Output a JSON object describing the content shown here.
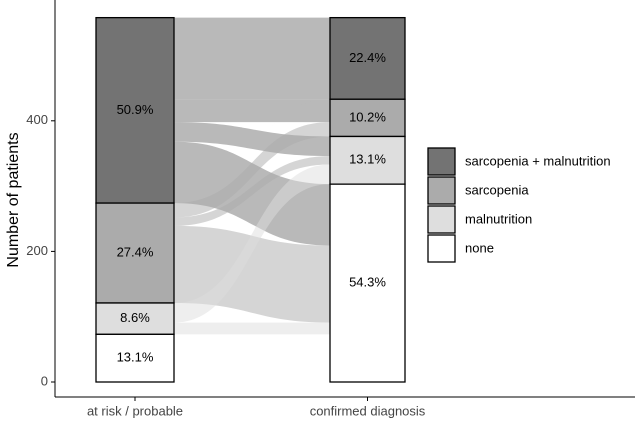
{
  "chart_data": {
    "type": "alluvial",
    "ylabel": "Number of patients",
    "ylim": [
      0,
      585
    ],
    "yticks": [
      0,
      200,
      400
    ],
    "series": [
      {
        "name": "sarcopenia + malnutrition",
        "color": "#737373"
      },
      {
        "name": "sarcopenia",
        "color": "#ababab"
      },
      {
        "name": "malnutrition",
        "color": "#dedede"
      },
      {
        "name": "none",
        "color": "#ffffff"
      }
    ],
    "stages": [
      {
        "name": "at risk / probable",
        "values": [
          284,
          153,
          48,
          73
        ],
        "value_labels": [
          "50.9%",
          "27.4%",
          "8.6%",
          "13.1%"
        ]
      },
      {
        "name": "confirmed diagnosis",
        "values": [
          125,
          57,
          73,
          303
        ],
        "value_labels": [
          "22.4%",
          "10.2%",
          "13.1%",
          "54.3%"
        ]
      }
    ],
    "flows": [
      [
        125,
        35,
        30,
        94
      ],
      [
        0,
        22,
        13,
        118
      ],
      [
        0,
        0,
        30,
        18
      ],
      [
        0,
        0,
        0,
        73
      ]
    ]
  }
}
